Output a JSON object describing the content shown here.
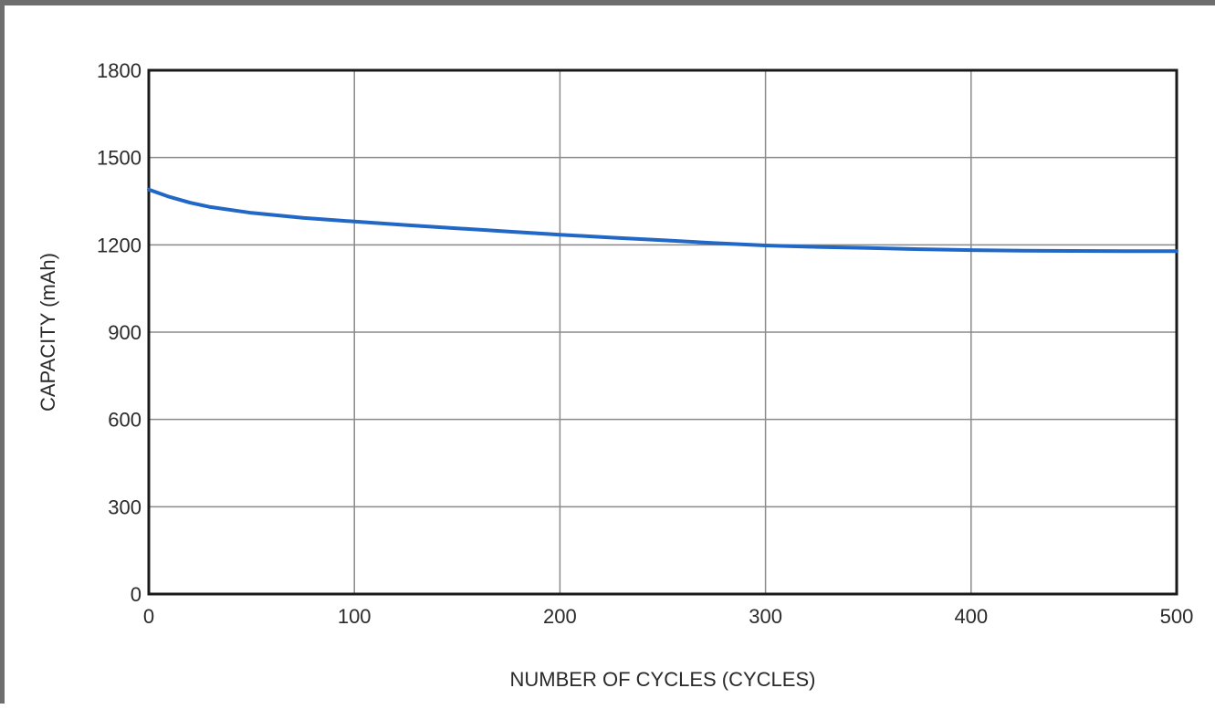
{
  "chart_data": {
    "type": "line",
    "title": "",
    "xlabel": "NUMBER OF CYCLES (CYCLES)",
    "ylabel": "CAPACITY (mAh)",
    "xlim": [
      0,
      500
    ],
    "ylim": [
      0,
      1800
    ],
    "xticks": [
      0,
      100,
      200,
      300,
      400,
      500
    ],
    "yticks": [
      0,
      300,
      600,
      900,
      1200,
      1500,
      1800
    ],
    "grid": true,
    "legend": "none",
    "line_color": "#2168c6",
    "series": [
      {
        "x": [
          0,
          10,
          20,
          30,
          50,
          75,
          100,
          125,
          150,
          175,
          200,
          225,
          250,
          275,
          300,
          325,
          350,
          375,
          400,
          425,
          450,
          475,
          500
        ],
        "values": [
          1390,
          1365,
          1345,
          1330,
          1310,
          1293,
          1280,
          1268,
          1257,
          1246,
          1235,
          1225,
          1216,
          1206,
          1198,
          1193,
          1189,
          1185,
          1182,
          1180,
          1179,
          1178,
          1178
        ]
      }
    ]
  }
}
